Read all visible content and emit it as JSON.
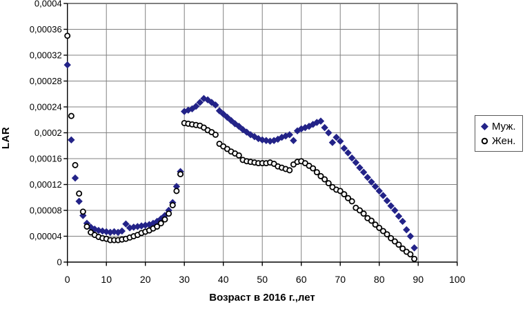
{
  "chart": {
    "y_axis_title": "LAR",
    "x_axis_title": "Возраст в 2016 г.,лет",
    "legend": {
      "items": [
        {
          "label": "Муж.",
          "marker": "diamond"
        },
        {
          "label": "Жен.",
          "marker": "circle"
        }
      ]
    }
  },
  "chart_data": {
    "type": "scatter",
    "title": "",
    "xlabel": "Возраст в 2016 г.,лет",
    "ylabel": "LAR",
    "xlim": [
      0,
      100
    ],
    "ylim": [
      0,
      0.0004
    ],
    "grid": true,
    "legend_position": "right",
    "x_ticks": [
      0,
      10,
      20,
      30,
      40,
      50,
      60,
      70,
      80,
      90,
      100
    ],
    "x_tick_labels": [
      "0",
      "10",
      "20",
      "30",
      "40",
      "50",
      "60",
      "70",
      "80",
      "90",
      "100"
    ],
    "y_ticks": [
      0,
      4e-05,
      8e-05,
      0.00012,
      0.00016,
      0.0002,
      0.00024,
      0.00028,
      0.00032,
      0.00036,
      0.0004
    ],
    "y_tick_labels": [
      "0",
      "0,00004",
      "0,00008",
      "0,00012",
      "0,00016",
      "0,0002",
      "0,00024",
      "0,00028",
      "0,00032",
      "0,00036",
      "0,0004"
    ],
    "colors": {
      "muzh": "#232388",
      "zhen": "#000000",
      "grid": "#808080",
      "border": "#7f7f7f",
      "axis": "#000000"
    },
    "value_unit": 1e-06,
    "ages": [
      0,
      1,
      2,
      3,
      4,
      5,
      6,
      7,
      8,
      9,
      10,
      11,
      12,
      13,
      14,
      15,
      16,
      17,
      18,
      19,
      20,
      21,
      22,
      23,
      24,
      25,
      26,
      27,
      28,
      29,
      30,
      31,
      32,
      33,
      34,
      35,
      36,
      37,
      38,
      39,
      40,
      41,
      42,
      43,
      44,
      45,
      46,
      47,
      48,
      49,
      50,
      51,
      52,
      53,
      54,
      55,
      56,
      57,
      58,
      59,
      60,
      61,
      62,
      63,
      64,
      65,
      66,
      67,
      68,
      69,
      70,
      71,
      72,
      73,
      74,
      75,
      76,
      77,
      78,
      79,
      80,
      81,
      82,
      83,
      84,
      85,
      86,
      87,
      88,
      89
    ],
    "series": [
      {
        "name": "Муж.",
        "marker": "diamond",
        "color": "#232388",
        "values_micro": [
          305,
          189,
          130,
          94,
          72,
          60,
          54,
          51,
          49,
          48,
          47,
          46,
          47,
          46,
          48,
          59,
          53,
          54,
          55,
          56,
          57,
          58,
          60,
          63,
          67,
          72,
          80,
          92,
          117,
          140,
          233,
          235,
          237,
          241,
          247,
          253,
          251,
          247,
          243,
          234,
          229,
          224,
          219,
          214,
          210,
          205,
          201,
          197,
          194,
          191,
          189,
          188,
          187,
          188,
          190,
          193,
          195,
          197,
          188,
          203,
          206,
          208,
          210,
          213,
          216,
          218,
          208,
          200,
          185,
          193,
          187,
          176,
          169,
          161,
          154,
          146,
          139,
          131,
          124,
          117,
          110,
          103,
          95,
          87,
          80,
          71,
          63,
          50,
          40,
          22
        ]
      },
      {
        "name": "Жен.",
        "marker": "circle",
        "color": "#000000",
        "values_micro": [
          350,
          226,
          150,
          106,
          78,
          55,
          46,
          42,
          39,
          37,
          36,
          34,
          34,
          34,
          35,
          36,
          38,
          40,
          42,
          45,
          47,
          49,
          52,
          55,
          60,
          66,
          75,
          88,
          110,
          136,
          215,
          214,
          213,
          212,
          211,
          208,
          204,
          201,
          197,
          183,
          179,
          175,
          171,
          168,
          165,
          158,
          156,
          155,
          154,
          153,
          153,
          153,
          154,
          152,
          148,
          146,
          144,
          142,
          151,
          155,
          156,
          153,
          149,
          145,
          139,
          133,
          128,
          122,
          116,
          112,
          110,
          105,
          99,
          94,
          84,
          80,
          75,
          68,
          64,
          58,
          53,
          48,
          43,
          37,
          32,
          27,
          21,
          16,
          12,
          5
        ]
      }
    ]
  }
}
